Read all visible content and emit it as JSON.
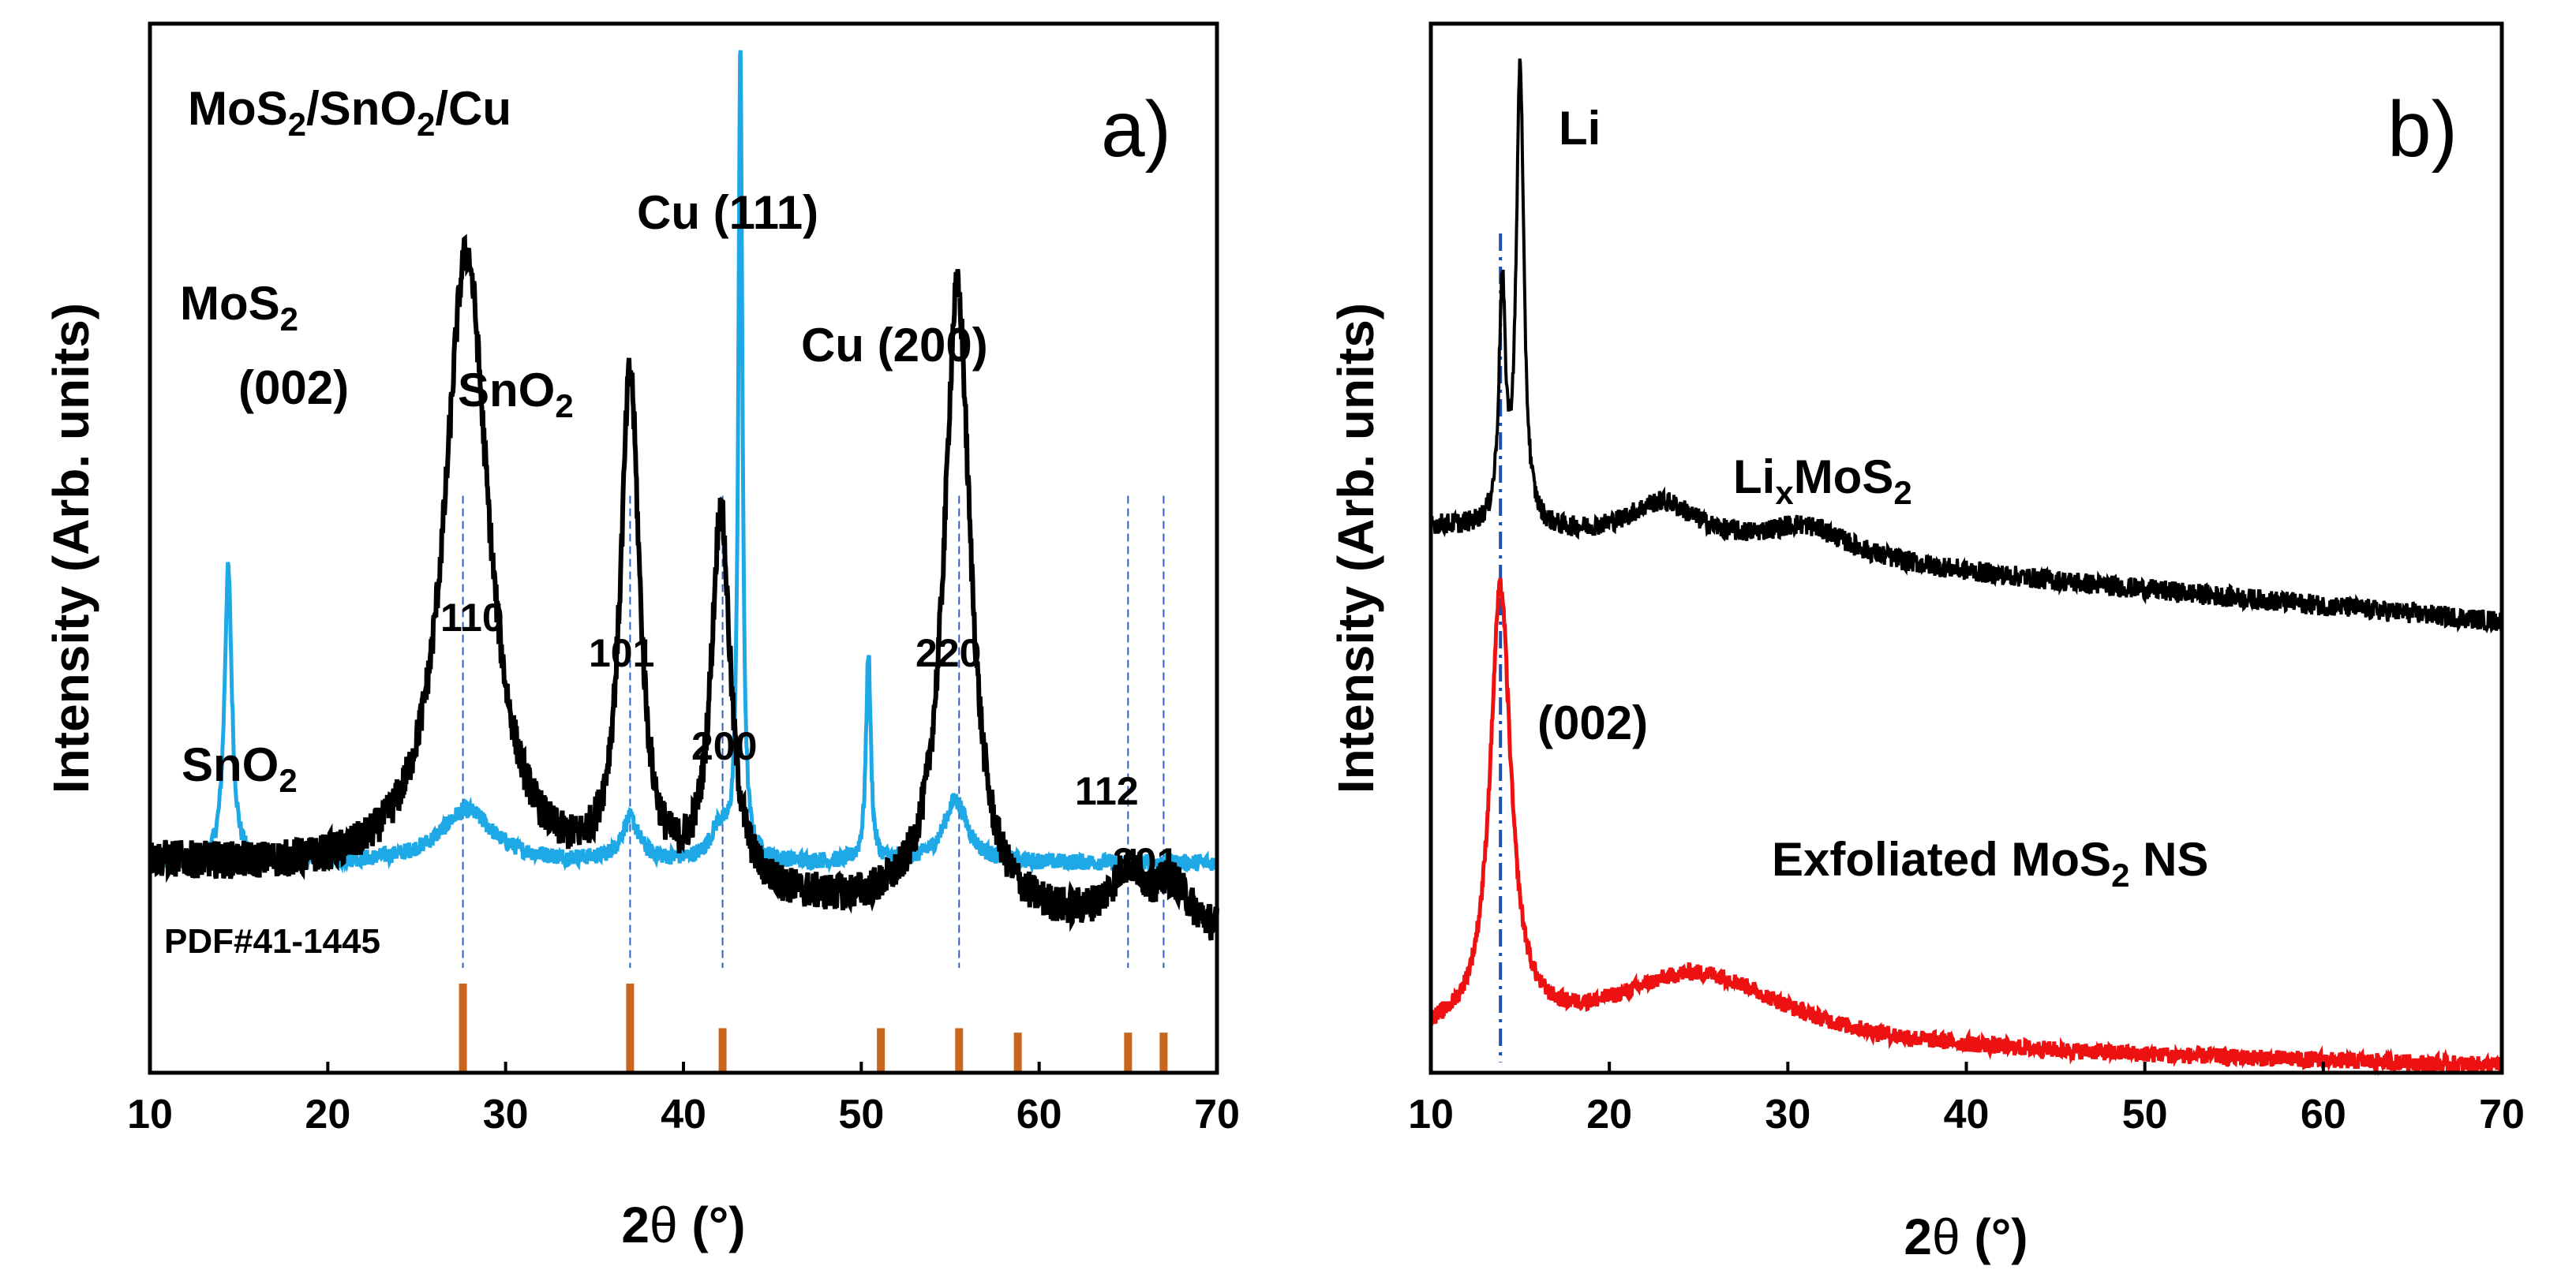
{
  "chart_data": [
    {
      "panel": "a",
      "type": "line",
      "panel_label": "a)",
      "xlabel_prefix": "2",
      "xlabel_theta": "θ",
      "xlabel_unit": " (°)",
      "ylabel": "Intensity (Arb. units)",
      "xlim": [
        10,
        70
      ],
      "x_ticks": [
        10,
        20,
        30,
        40,
        50,
        60,
        70
      ],
      "series": [
        {
          "name": "MoS2/SnO2/Cu",
          "color": "#1ea8e6",
          "baseline": 0.2,
          "peaks": [
            {
              "center": 14.4,
              "height": 0.28,
              "width": 0.25
            },
            {
              "center": 27.8,
              "height": 0.05,
              "width": 1.8
            },
            {
              "center": 37.0,
              "height": 0.04,
              "width": 0.6
            },
            {
              "center": 42.0,
              "height": 0.03,
              "width": 0.6
            },
            {
              "center": 43.2,
              "height": 0.77,
              "width": 0.14
            },
            {
              "center": 50.4,
              "height": 0.2,
              "width": 0.16
            },
            {
              "center": 55.3,
              "height": 0.06,
              "width": 0.8
            }
          ],
          "noise": 0.008
        },
        {
          "name": "SnO2",
          "color": "#000000",
          "baseline": 0.2,
          "slope": -0.0012,
          "peaks": [
            {
              "center": 27.8,
              "height": 0.6,
              "width": 1.5
            },
            {
              "center": 37.0,
              "height": 0.48,
              "width": 0.65
            },
            {
              "center": 42.1,
              "height": 0.36,
              "width": 0.65
            },
            {
              "center": 55.4,
              "height": 0.6,
              "width": 0.9
            },
            {
              "center": 65.0,
              "height": 0.05,
              "width": 1.2
            },
            {
              "center": 67.5,
              "height": 0.04,
              "width": 1.2
            }
          ],
          "noise": 0.018
        }
      ],
      "reference_pattern": {
        "name": "PDF#41-1445",
        "color": "#c8661e",
        "positions": [
          27.6,
          37.0,
          42.2,
          51.1,
          55.5,
          58.8,
          65.0,
          67.0
        ],
        "relative_intensities": [
          1.0,
          1.0,
          0.5,
          0.5,
          0.5,
          0.45,
          0.45,
          0.45
        ]
      },
      "dashed_guides": [
        27.6,
        37.0,
        42.2,
        55.5,
        65.0,
        67.0
      ],
      "annotations": {
        "composite_title": {
          "main": "MoS",
          "sub1": "2",
          "mid1": "/SnO",
          "sub2": "2",
          "end": "/Cu"
        },
        "mos2_label": {
          "main": "MoS",
          "sub": "2"
        },
        "mos2_index": "(002)",
        "sno2_top": {
          "main": "SnO",
          "sub": "2"
        },
        "cu111": "Cu (111)",
        "cu200": "Cu (200)",
        "hkl_110": "110",
        "hkl_101": "101",
        "hkl_200": "200",
        "hkl_220": "220",
        "hkl_112": "112",
        "hkl_301": "301",
        "sno2_bottom": {
          "main": "SnO",
          "sub": "2"
        },
        "pdf_label": "PDF#41-1445"
      }
    },
    {
      "panel": "b",
      "type": "line",
      "panel_label": "b)",
      "xlabel_prefix": "2",
      "xlabel_theta": "θ",
      "xlabel_unit": " (°)",
      "ylabel": "Intensity (Arb. units)",
      "xlim": [
        10,
        70
      ],
      "x_ticks": [
        10,
        20,
        30,
        40,
        50,
        60,
        70
      ],
      "series": [
        {
          "name": "LixMoS2",
          "color": "#000000",
          "baseline": 0.52,
          "slope": -0.0015,
          "peaks": [
            {
              "center": 14.0,
              "height": 0.22,
              "width": 0.22
            },
            {
              "center": 15.0,
              "height": 0.44,
              "width": 0.25
            },
            {
              "center": 23.0,
              "height": 0.04,
              "width": 2.5
            },
            {
              "center": 31.0,
              "height": 0.03,
              "width": 3.0
            }
          ],
          "noise": 0.01
        },
        {
          "name": "Exfoliated MoS2 NS",
          "color": "#ee1111",
          "baseline": 0.03,
          "slope": -0.0004,
          "peaks": [
            {
              "center": 13.9,
              "height": 0.42,
              "width": 0.7
            },
            {
              "center": 25.0,
              "height": 0.07,
              "width": 6.0
            }
          ],
          "noise": 0.008
        }
      ],
      "dashed_guides": [
        13.9
      ],
      "annotations": {
        "li": "Li",
        "lixmos2": {
          "main": "Li",
          "sub": "x",
          "mid": "MoS",
          "sub2": "2"
        },
        "index_002": "(002)",
        "exfoliated": {
          "main": "Exfoliated MoS",
          "sub": "2",
          "end": " NS"
        }
      }
    }
  ]
}
